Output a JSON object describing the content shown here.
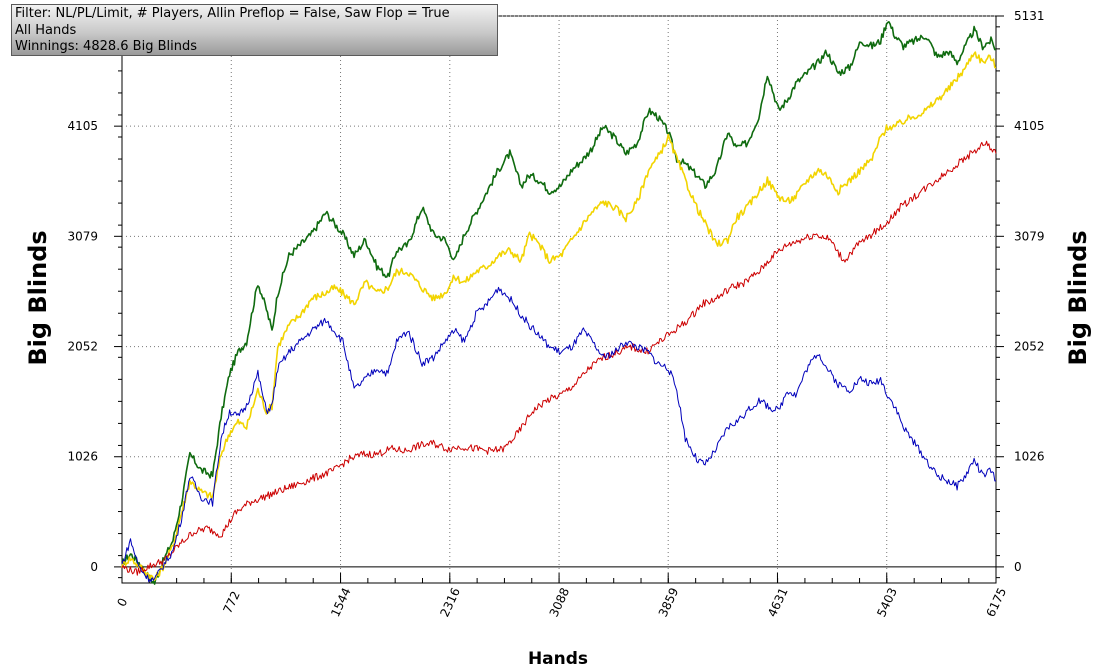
{
  "info_box": {
    "filter_line": "Filter: NL/PL/Limit, # Players, Allin Preflop = False, Saw Flop = True",
    "scope_line": "All Hands",
    "winnings_line": "Winnings: 4828.6 Big Blinds"
  },
  "chart_data": {
    "type": "line",
    "title": "",
    "xlabel": "Hands",
    "ylabel": "Big Blinds",
    "xlim": [
      0,
      6175
    ],
    "ylim": [
      -150,
      5131
    ],
    "grid": true,
    "x_ticks": [
      "0",
      "772",
      "1544",
      "2316",
      "3088",
      "3859",
      "4631",
      "5403",
      "6175"
    ],
    "y_ticks": [
      "0",
      "1026",
      "2052",
      "3079",
      "4105",
      "5131"
    ],
    "series": [
      {
        "color": "#0f6b0f",
        "role": "total winnings",
        "x": [
          0,
          60,
          120,
          180,
          230,
          290,
          360,
          420,
          480,
          560,
          640,
          700,
          760,
          820,
          880,
          960,
          1020,
          1060,
          1100,
          1180,
          1260,
          1340,
          1440,
          1500,
          1560,
          1640,
          1720,
          1800,
          1880,
          1940,
          2020,
          2120,
          2200,
          2280,
          2350,
          2420,
          2500,
          2580,
          2660,
          2740,
          2820,
          2880,
          2950,
          3020,
          3100,
          3180,
          3260,
          3320,
          3400,
          3480,
          3560,
          3640,
          3720,
          3780,
          3860,
          3920,
          3980,
          4060,
          4120,
          4200,
          4280,
          4340,
          4420,
          4500,
          4560,
          4640,
          4700,
          4760,
          4840,
          4920,
          4980,
          5060,
          5140,
          5220,
          5300,
          5360,
          5410,
          5460,
          5520,
          5600,
          5680,
          5760,
          5840,
          5900,
          5960,
          6020,
          6080,
          6140,
          6175
        ],
        "values": [
          30,
          120,
          40,
          -80,
          -150,
          50,
          250,
          600,
          1050,
          900,
          850,
          1400,
          1800,
          2000,
          2100,
          2650,
          2400,
          2200,
          2550,
          2900,
          3000,
          3100,
          3300,
          3200,
          3100,
          2900,
          3050,
          2800,
          2700,
          2950,
          3000,
          3350,
          3100,
          3050,
          2850,
          3100,
          3300,
          3500,
          3700,
          3850,
          3550,
          3650,
          3600,
          3500,
          3550,
          3700,
          3800,
          3900,
          4100,
          4000,
          3850,
          3950,
          4250,
          4200,
          4050,
          3800,
          3750,
          3650,
          3550,
          3700,
          4050,
          3900,
          3950,
          4200,
          4600,
          4250,
          4350,
          4500,
          4600,
          4700,
          4800,
          4600,
          4650,
          4900,
          4850,
          4900,
          5100,
          4950,
          4850,
          4900,
          4950,
          4750,
          4800,
          4700,
          4850,
          5000,
          4850,
          4900,
          4820
        ]
      },
      {
        "color": "#f2d400",
        "role": "showdown winnings",
        "x": [
          0,
          60,
          120,
          180,
          230,
          290,
          360,
          420,
          480,
          560,
          640,
          700,
          760,
          820,
          880,
          960,
          1020,
          1060,
          1100,
          1180,
          1260,
          1340,
          1440,
          1500,
          1560,
          1640,
          1720,
          1800,
          1880,
          1940,
          2020,
          2120,
          2200,
          2280,
          2350,
          2420,
          2500,
          2580,
          2660,
          2740,
          2820,
          2880,
          2950,
          3020,
          3100,
          3180,
          3260,
          3320,
          3400,
          3480,
          3560,
          3640,
          3720,
          3780,
          3860,
          3920,
          3980,
          4060,
          4120,
          4200,
          4280,
          4340,
          4420,
          4500,
          4560,
          4640,
          4700,
          4760,
          4840,
          4920,
          4980,
          5060,
          5140,
          5220,
          5300,
          5360,
          5410,
          5460,
          5520,
          5600,
          5680,
          5760,
          5840,
          5900,
          5960,
          6020,
          6080,
          6140,
          6175
        ],
        "values": [
          20,
          80,
          10,
          -60,
          -120,
          0,
          200,
          500,
          800,
          700,
          650,
          1050,
          1250,
          1350,
          1300,
          1650,
          1450,
          1500,
          2050,
          2250,
          2350,
          2500,
          2550,
          2600,
          2550,
          2450,
          2650,
          2550,
          2600,
          2750,
          2750,
          2600,
          2500,
          2550,
          2700,
          2650,
          2750,
          2800,
          2900,
          2950,
          2850,
          3100,
          3000,
          2850,
          2900,
          3050,
          3200,
          3300,
          3400,
          3350,
          3250,
          3400,
          3700,
          3800,
          4000,
          3800,
          3600,
          3350,
          3200,
          3000,
          3050,
          3250,
          3350,
          3500,
          3600,
          3450,
          3400,
          3450,
          3600,
          3700,
          3650,
          3500,
          3600,
          3700,
          3800,
          4000,
          4100,
          4100,
          4150,
          4200,
          4250,
          4350,
          4450,
          4550,
          4650,
          4800,
          4700,
          4750,
          4650
        ]
      },
      {
        "color": "#cc0000",
        "role": "expected value",
        "x": [
          0,
          100,
          200,
          300,
          400,
          500,
          600,
          700,
          800,
          900,
          1000,
          1100,
          1200,
          1300,
          1400,
          1500,
          1600,
          1700,
          1800,
          1900,
          2000,
          2100,
          2200,
          2300,
          2400,
          2500,
          2600,
          2700,
          2800,
          2900,
          3000,
          3100,
          3200,
          3300,
          3400,
          3500,
          3600,
          3700,
          3800,
          3900,
          4000,
          4100,
          4200,
          4300,
          4400,
          4500,
          4600,
          4700,
          4800,
          4900,
          5000,
          5100,
          5200,
          5300,
          5400,
          5500,
          5600,
          5700,
          5800,
          5900,
          6000,
          6100,
          6175
        ],
        "values": [
          0,
          -50,
          10,
          60,
          200,
          320,
          360,
          300,
          500,
          600,
          650,
          700,
          750,
          800,
          850,
          900,
          1000,
          1050,
          1050,
          1100,
          1080,
          1130,
          1150,
          1100,
          1120,
          1100,
          1080,
          1100,
          1250,
          1450,
          1550,
          1600,
          1700,
          1850,
          1950,
          2000,
          2050,
          2000,
          2100,
          2200,
          2300,
          2450,
          2500,
          2600,
          2650,
          2750,
          2900,
          3000,
          3050,
          3100,
          3050,
          2850,
          3000,
          3100,
          3200,
          3350,
          3450,
          3550,
          3650,
          3750,
          3850,
          3950,
          3850
        ]
      },
      {
        "color": "#0000bb",
        "role": "non-showdown winnings",
        "x": [
          0,
          60,
          120,
          180,
          230,
          290,
          360,
          420,
          480,
          560,
          640,
          700,
          760,
          820,
          880,
          960,
          1020,
          1060,
          1100,
          1180,
          1260,
          1340,
          1440,
          1500,
          1560,
          1640,
          1720,
          1800,
          1880,
          1940,
          2020,
          2120,
          2200,
          2280,
          2350,
          2420,
          2500,
          2580,
          2660,
          2740,
          2820,
          2880,
          2950,
          3020,
          3100,
          3180,
          3260,
          3320,
          3400,
          3480,
          3560,
          3640,
          3720,
          3780,
          3860,
          3920,
          3980,
          4060,
          4120,
          4200,
          4280,
          4340,
          4420,
          4500,
          4560,
          4640,
          4700,
          4760,
          4840,
          4920,
          4980,
          5060,
          5140,
          5220,
          5300,
          5360,
          5410,
          5460,
          5520,
          5600,
          5680,
          5760,
          5840,
          5900,
          5960,
          6020,
          6080,
          6140,
          6175
        ],
        "values": [
          20,
          250,
          0,
          -100,
          -120,
          10,
          150,
          450,
          850,
          650,
          600,
          1200,
          1450,
          1400,
          1500,
          1800,
          1450,
          1500,
          1850,
          2000,
          2100,
          2200,
          2300,
          2200,
          2100,
          1650,
          1750,
          1850,
          1800,
          2100,
          2200,
          1900,
          1950,
          2100,
          2200,
          2100,
          2350,
          2450,
          2600,
          2500,
          2350,
          2250,
          2150,
          2050,
          2000,
          2050,
          2200,
          2100,
          1950,
          2000,
          2100,
          2050,
          2000,
          1900,
          1850,
          1650,
          1200,
          1000,
          950,
          1100,
          1300,
          1350,
          1450,
          1550,
          1500,
          1450,
          1650,
          1600,
          1850,
          2000,
          1850,
          1700,
          1650,
          1750,
          1700,
          1750,
          1600,
          1500,
          1300,
          1150,
          1000,
          850,
          800,
          750,
          850,
          1000,
          850,
          900,
          800
        ]
      }
    ]
  }
}
